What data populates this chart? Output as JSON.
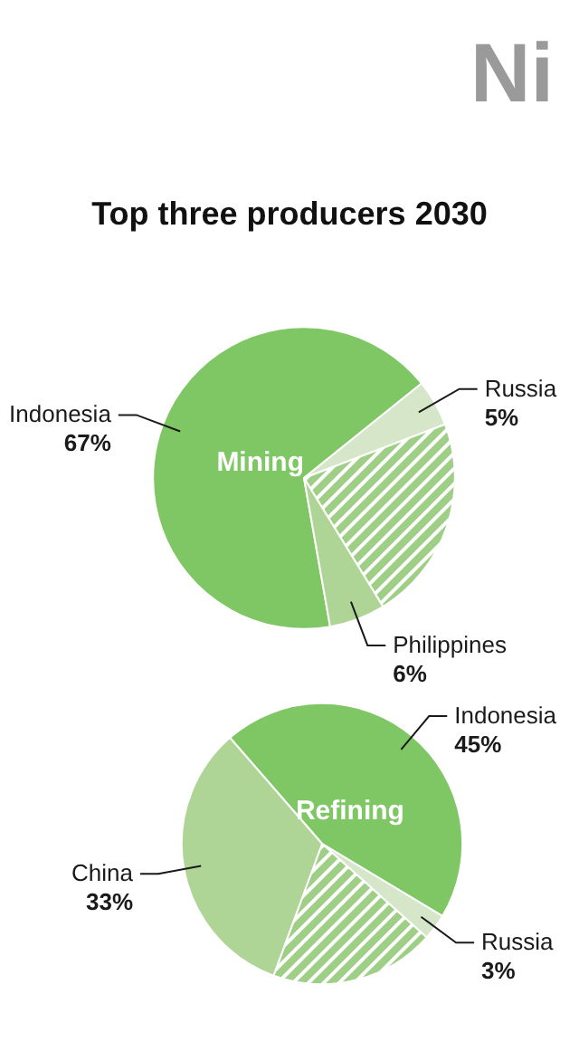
{
  "chart_data": [
    {
      "type": "pie",
      "title": "Top three producers 2030",
      "subtitle": "Mining",
      "annotations": [
        "Ni"
      ],
      "categories": [
        "Indonesia",
        "Russia",
        null,
        "Philippines"
      ],
      "values": [
        67,
        5,
        22,
        6
      ],
      "value_labels": [
        "67%",
        "5%",
        null,
        "6%"
      ],
      "colors": [
        "#7fc664",
        "#d6e6c9",
        "#9fcf86",
        "#aed596"
      ]
    },
    {
      "type": "pie",
      "subtitle": "Refining",
      "categories": [
        "Indonesia",
        "Russia",
        null,
        "China"
      ],
      "values": [
        45,
        3,
        19,
        33
      ],
      "value_labels": [
        "45%",
        "3%",
        null,
        "33%"
      ],
      "colors": [
        "#7fc664",
        "#d6e6c9",
        "#9fcf86",
        "#aed596"
      ]
    }
  ]
}
